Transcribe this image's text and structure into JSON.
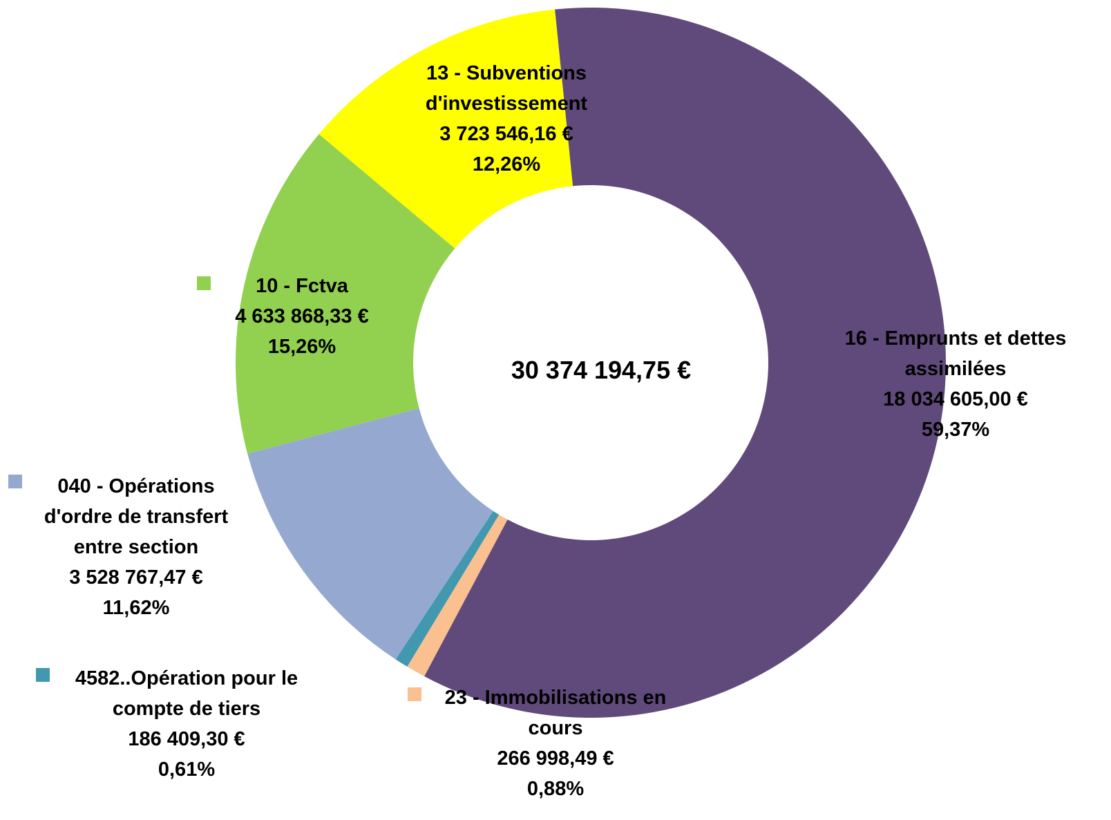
{
  "chart_data": {
    "type": "donut",
    "categories": [
      "16 - Emprunts et dettes assimilées",
      "23 - Immobilisations en cours",
      "4582..Opération pour le compte de tiers",
      "040 - Opérations d'ordre de transfert entre section",
      "10 - Fctva",
      "13 - Subventions d'investissement"
    ],
    "values": [
      18034605.0,
      266998.49,
      186409.3,
      3528767.47,
      4633868.33,
      3723546.16
    ],
    "value_labels": [
      "18 034 605,00 €",
      "266 998,49 €",
      "186 409,30 €",
      "3 528 767,47 €",
      "4 633 868,33 €",
      "3 723 546,16 €"
    ],
    "percentages": [
      59.37,
      0.88,
      0.61,
      11.62,
      15.26,
      12.26
    ],
    "percentage_labels": [
      "59,37%",
      "0,88%",
      "0,61%",
      "11,62%",
      "15,26%",
      "12,26%"
    ],
    "colors": [
      "#604a7b",
      "#fac090",
      "#4198af",
      "#95a9d0",
      "#92d050",
      "#ffff00"
    ],
    "center_label": "30 374 194,75 €"
  }
}
